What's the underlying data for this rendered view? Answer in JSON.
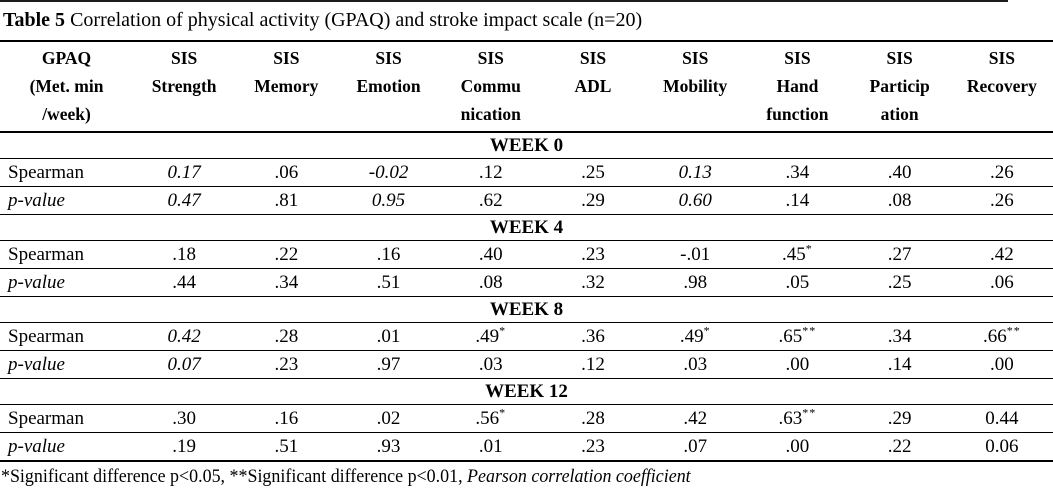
{
  "title": {
    "bold_part": "Table 5",
    "rest_part": " Correlation of physical activity (GPAQ) and stroke impact scale (n=20)"
  },
  "table": {
    "column_headers": [
      {
        "id": "gpaq",
        "lines": [
          "GPAQ",
          "(Met. min",
          "/week)"
        ]
      },
      {
        "id": "sis-strength",
        "lines": [
          "SIS",
          "Strength"
        ]
      },
      {
        "id": "sis-memory",
        "lines": [
          "SIS",
          "Memory"
        ]
      },
      {
        "id": "sis-emotion",
        "lines": [
          "SIS",
          "Emotion"
        ]
      },
      {
        "id": "sis-communication",
        "lines": [
          "SIS",
          "Commu",
          "nication"
        ]
      },
      {
        "id": "sis-adl",
        "lines": [
          "SIS",
          "ADL"
        ]
      },
      {
        "id": "sis-mobility",
        "lines": [
          "SIS",
          "Mobility"
        ]
      },
      {
        "id": "sis-hand-function",
        "lines": [
          "SIS",
          "Hand",
          "function"
        ]
      },
      {
        "id": "sis-participation",
        "lines": [
          "SIS",
          "Particip",
          "ation"
        ]
      },
      {
        "id": "sis-recovery",
        "lines": [
          "SIS",
          "Recovery"
        ]
      }
    ],
    "sections": [
      {
        "week": "WEEK 0",
        "rows": [
          {
            "label": "Spearman",
            "italic_label": false,
            "cells": [
              {
                "v": "0.17",
                "italic": true,
                "sup": ""
              },
              {
                "v": ".06",
                "italic": false,
                "sup": ""
              },
              {
                "v": "-0.02",
                "italic": true,
                "sup": ""
              },
              {
                "v": ".12",
                "italic": false,
                "sup": ""
              },
              {
                "v": ".25",
                "italic": false,
                "sup": ""
              },
              {
                "v": "0.13",
                "italic": true,
                "sup": ""
              },
              {
                "v": ".34",
                "italic": false,
                "sup": ""
              },
              {
                "v": ".40",
                "italic": false,
                "sup": ""
              },
              {
                "v": ".26",
                "italic": false,
                "sup": ""
              }
            ]
          },
          {
            "label": "p-value",
            "italic_label": true,
            "cells": [
              {
                "v": "0.47",
                "italic": true,
                "sup": ""
              },
              {
                "v": ".81",
                "italic": false,
                "sup": ""
              },
              {
                "v": "0.95",
                "italic": true,
                "sup": ""
              },
              {
                "v": ".62",
                "italic": false,
                "sup": ""
              },
              {
                "v": ".29",
                "italic": false,
                "sup": ""
              },
              {
                "v": "0.60",
                "italic": true,
                "sup": ""
              },
              {
                "v": ".14",
                "italic": false,
                "sup": ""
              },
              {
                "v": ".08",
                "italic": false,
                "sup": ""
              },
              {
                "v": ".26",
                "italic": false,
                "sup": ""
              }
            ]
          }
        ]
      },
      {
        "week": "WEEK 4",
        "rows": [
          {
            "label": "Spearman",
            "italic_label": false,
            "cells": [
              {
                "v": ".18",
                "italic": false,
                "sup": ""
              },
              {
                "v": ".22",
                "italic": false,
                "sup": ""
              },
              {
                "v": ".16",
                "italic": false,
                "sup": ""
              },
              {
                "v": ".40",
                "italic": false,
                "sup": ""
              },
              {
                "v": ".23",
                "italic": false,
                "sup": ""
              },
              {
                "v": "-.01",
                "italic": false,
                "sup": ""
              },
              {
                "v": ".45",
                "italic": false,
                "sup": "*"
              },
              {
                "v": ".27",
                "italic": false,
                "sup": ""
              },
              {
                "v": ".42",
                "italic": false,
                "sup": ""
              }
            ]
          },
          {
            "label": "p-value",
            "italic_label": true,
            "cells": [
              {
                "v": ".44",
                "italic": false,
                "sup": ""
              },
              {
                "v": ".34",
                "italic": false,
                "sup": ""
              },
              {
                "v": ".51",
                "italic": false,
                "sup": ""
              },
              {
                "v": ".08",
                "italic": false,
                "sup": ""
              },
              {
                "v": ".32",
                "italic": false,
                "sup": ""
              },
              {
                "v": ".98",
                "italic": false,
                "sup": ""
              },
              {
                "v": ".05",
                "italic": false,
                "sup": ""
              },
              {
                "v": ".25",
                "italic": false,
                "sup": ""
              },
              {
                "v": ".06",
                "italic": false,
                "sup": ""
              }
            ]
          }
        ]
      },
      {
        "week": "WEEK 8",
        "rows": [
          {
            "label": "Spearman",
            "italic_label": false,
            "cells": [
              {
                "v": "0.42",
                "italic": true,
                "sup": ""
              },
              {
                "v": ".28",
                "italic": false,
                "sup": ""
              },
              {
                "v": ".01",
                "italic": false,
                "sup": ""
              },
              {
                "v": ".49",
                "italic": false,
                "sup": "*"
              },
              {
                "v": ".36",
                "italic": false,
                "sup": ""
              },
              {
                "v": ".49",
                "italic": false,
                "sup": "*"
              },
              {
                "v": ".65",
                "italic": false,
                "sup": "**"
              },
              {
                "v": ".34",
                "italic": false,
                "sup": ""
              },
              {
                "v": ".66",
                "italic": false,
                "sup": "**"
              }
            ]
          },
          {
            "label": "p-value",
            "italic_label": true,
            "cells": [
              {
                "v": "0.07",
                "italic": true,
                "sup": ""
              },
              {
                "v": ".23",
                "italic": false,
                "sup": ""
              },
              {
                "v": ".97",
                "italic": false,
                "sup": ""
              },
              {
                "v": ".03",
                "italic": false,
                "sup": ""
              },
              {
                "v": ".12",
                "italic": false,
                "sup": ""
              },
              {
                "v": ".03",
                "italic": false,
                "sup": ""
              },
              {
                "v": ".00",
                "italic": false,
                "sup": ""
              },
              {
                "v": ".14",
                "italic": false,
                "sup": ""
              },
              {
                "v": ".00",
                "italic": false,
                "sup": ""
              }
            ]
          }
        ]
      },
      {
        "week": "WEEK 12",
        "rows": [
          {
            "label": "Spearman",
            "italic_label": false,
            "cells": [
              {
                "v": ".30",
                "italic": false,
                "sup": ""
              },
              {
                "v": ".16",
                "italic": false,
                "sup": ""
              },
              {
                "v": ".02",
                "italic": false,
                "sup": ""
              },
              {
                "v": ".56",
                "italic": false,
                "sup": "*"
              },
              {
                "v": ".28",
                "italic": false,
                "sup": ""
              },
              {
                "v": ".42",
                "italic": false,
                "sup": ""
              },
              {
                "v": ".63",
                "italic": false,
                "sup": "**"
              },
              {
                "v": ".29",
                "italic": false,
                "sup": ""
              },
              {
                "v": "0.44",
                "italic": false,
                "sup": ""
              }
            ]
          },
          {
            "label": "p-value",
            "italic_label": true,
            "cells": [
              {
                "v": ".19",
                "italic": false,
                "sup": ""
              },
              {
                "v": ".51",
                "italic": false,
                "sup": ""
              },
              {
                "v": ".93",
                "italic": false,
                "sup": ""
              },
              {
                "v": ".01",
                "italic": false,
                "sup": ""
              },
              {
                "v": ".23",
                "italic": false,
                "sup": ""
              },
              {
                "v": ".07",
                "italic": false,
                "sup": ""
              },
              {
                "v": ".00",
                "italic": false,
                "sup": ""
              },
              {
                "v": ".22",
                "italic": false,
                "sup": ""
              },
              {
                "v": "0.06",
                "italic": false,
                "sup": ""
              }
            ]
          }
        ]
      }
    ]
  },
  "footnote": {
    "plain_part": "*Significant difference p<0.05, **Significant difference p<0.01, ",
    "italic_part": "Pearson correlation coefficient"
  },
  "colors": {
    "text": "#000000",
    "background": "#ffffff",
    "rule": "#000000"
  }
}
